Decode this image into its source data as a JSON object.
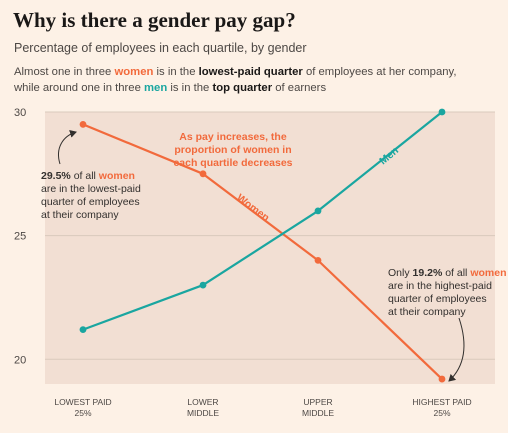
{
  "title": "Why is there a gender pay gap?",
  "subtitle": "Percentage of employees in each quartile, by gender",
  "description": {
    "p1": "Almost one in three ",
    "women": "women",
    "p2": " is in the ",
    "lowest": "lowest-paid quarter",
    "p3": " of employees at her company,",
    "p4": "while around one in three ",
    "men": "men",
    "p5": " is in the ",
    "top": "top quarter",
    "p6": " of earners"
  },
  "colors": {
    "women": "#f26a3c",
    "men": "#1aa6a0",
    "text": "#4d4845",
    "grid": "#d9cabc",
    "plot_bg": "#f2dfd3"
  },
  "chart_data": {
    "type": "line",
    "categories": [
      "LOWEST PAID 25%",
      "LOWER MIDDLE",
      "UPPER MIDDLE",
      "HIGHEST PAID 25%"
    ],
    "category_lines": [
      [
        "LOWEST PAID",
        "25%"
      ],
      [
        "LOWER",
        "MIDDLE"
      ],
      [
        "UPPER",
        "MIDDLE"
      ],
      [
        "HIGHEST PAID",
        "25%"
      ]
    ],
    "series": [
      {
        "name": "Women",
        "values": [
          29.5,
          27.5,
          24.0,
          19.2
        ]
      },
      {
        "name": "Men",
        "values": [
          21.2,
          23.0,
          26.0,
          30.0
        ]
      }
    ],
    "ylim": [
      19,
      30
    ],
    "yticks": [
      20,
      25,
      30
    ],
    "grid": true
  },
  "annotations": {
    "middle": [
      "As pay increases, the",
      "proportion of women in",
      "each quartile decreases"
    ],
    "left_value": "29.5%",
    "left_mid": " of all ",
    "left_women": "women",
    "left_rest": [
      "are in the lowest-paid",
      "quarter of employees",
      "at their company"
    ],
    "right_prefix": "Only ",
    "right_value": "19.2%",
    "right_mid": " of all ",
    "right_women": "women",
    "right_rest": [
      "are in the highest-paid",
      "quarter of employees",
      "at their company"
    ]
  }
}
